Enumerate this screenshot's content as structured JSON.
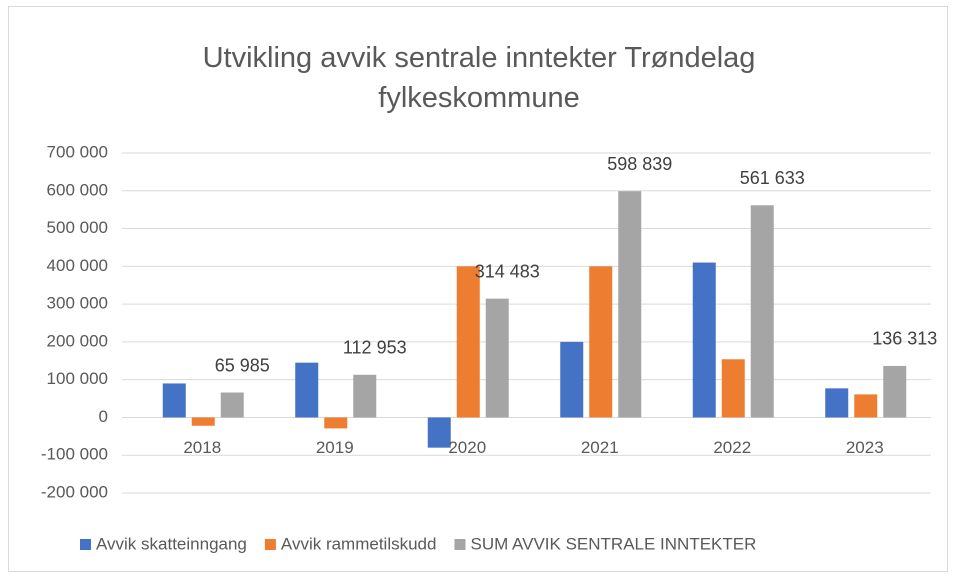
{
  "chart_data": {
    "type": "bar",
    "title": "Utvikling avvik sentrale inntekter Trøndelag fylkeskommune",
    "categories": [
      "2018",
      "2019",
      "2020",
      "2021",
      "2022",
      "2023"
    ],
    "series": [
      {
        "name": "Avvik skatteinngang",
        "color": "#4472c4",
        "values": [
          90000,
          145000,
          -80000,
          200000,
          410000,
          77000
        ]
      },
      {
        "name": "Avvik rammetilskudd",
        "color": "#ed7d31",
        "values": [
          -22000,
          -29000,
          400000,
          400000,
          154000,
          61000
        ]
      },
      {
        "name": "SUM AVVIK SENTRALE INNTEKTER",
        "color": "#a5a5a5",
        "values": [
          65985,
          112953,
          314483,
          598839,
          561633,
          136313
        ],
        "value_labels": [
          "65 985",
          "112 953",
          "314 483",
          "598 839",
          "561 633",
          "136 313"
        ]
      }
    ],
    "ylim": [
      -200000,
      700000
    ],
    "yticks": [
      {
        "value": -200000,
        "label": "-200 000"
      },
      {
        "value": -100000,
        "label": "-100 000"
      },
      0,
      {
        "value": 100000,
        "label": "100 000"
      },
      {
        "value": 200000,
        "label": "200 000"
      },
      {
        "value": 300000,
        "label": "300 000"
      },
      {
        "value": 400000,
        "label": "400 000"
      },
      {
        "value": 500000,
        "label": "500 000"
      },
      {
        "value": 600000,
        "label": "600 000"
      },
      {
        "value": 700000,
        "label": "700 000"
      }
    ],
    "grid": true,
    "legend": "bottom"
  }
}
